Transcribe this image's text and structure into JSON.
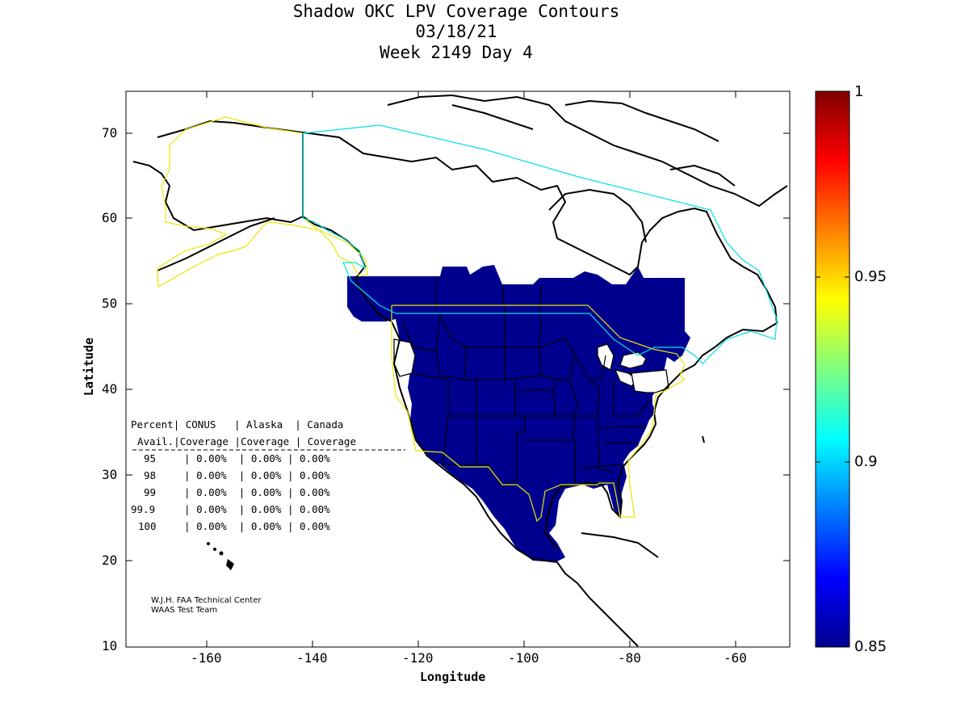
{
  "title": {
    "line1": "Shadow OKC LPV Coverage Contours",
    "line2": "03/18/21",
    "line3": "Week 2149 Day 4"
  },
  "axes": {
    "xlabel": "Longitude",
    "ylabel": "Latitude",
    "xticks": [
      "-160",
      "-140",
      "-120",
      "-100",
      "-80",
      "-60"
    ],
    "yticks": [
      "70",
      "60",
      "50",
      "40",
      "30",
      "20",
      "10"
    ],
    "xlim": [
      -175,
      -50
    ],
    "ylim": [
      10,
      75
    ]
  },
  "colorbar": {
    "labels": [
      "1",
      "0.95",
      "0.9",
      "0.85"
    ],
    "range": [
      0.85,
      1
    ]
  },
  "coverage_table": {
    "header1": [
      "Percent",
      "CONUS",
      "Alaska",
      "Canada"
    ],
    "header2": [
      "Avail.",
      "Coverage",
      "Coverage",
      "Coverage"
    ],
    "rows": [
      {
        "pct": "95",
        "conus": "0.00%",
        "alaska": "0.00%",
        "canada": "0.00%"
      },
      {
        "pct": "98",
        "conus": "0.00%",
        "alaska": "0.00%",
        "canada": "0.00%"
      },
      {
        "pct": "99",
        "conus": "0.00%",
        "alaska": "0.00%",
        "canada": "0.00%"
      },
      {
        "pct": "99.9",
        "conus": "0.00%",
        "alaska": "0.00%",
        "canada": "0.00%"
      },
      {
        "pct": "100",
        "conus": "0.00%",
        "alaska": "0.00%",
        "canada": "0.00%"
      }
    ]
  },
  "credit": {
    "line1": "W.J.H. FAA Technical Center",
    "line2": "WAAS Test Team"
  },
  "colors": {
    "coverage_fill": "#00008f",
    "conus_outline": "#e8e800",
    "alaska_canada_outline": "#00e0e8",
    "coastline": "#000000"
  }
}
